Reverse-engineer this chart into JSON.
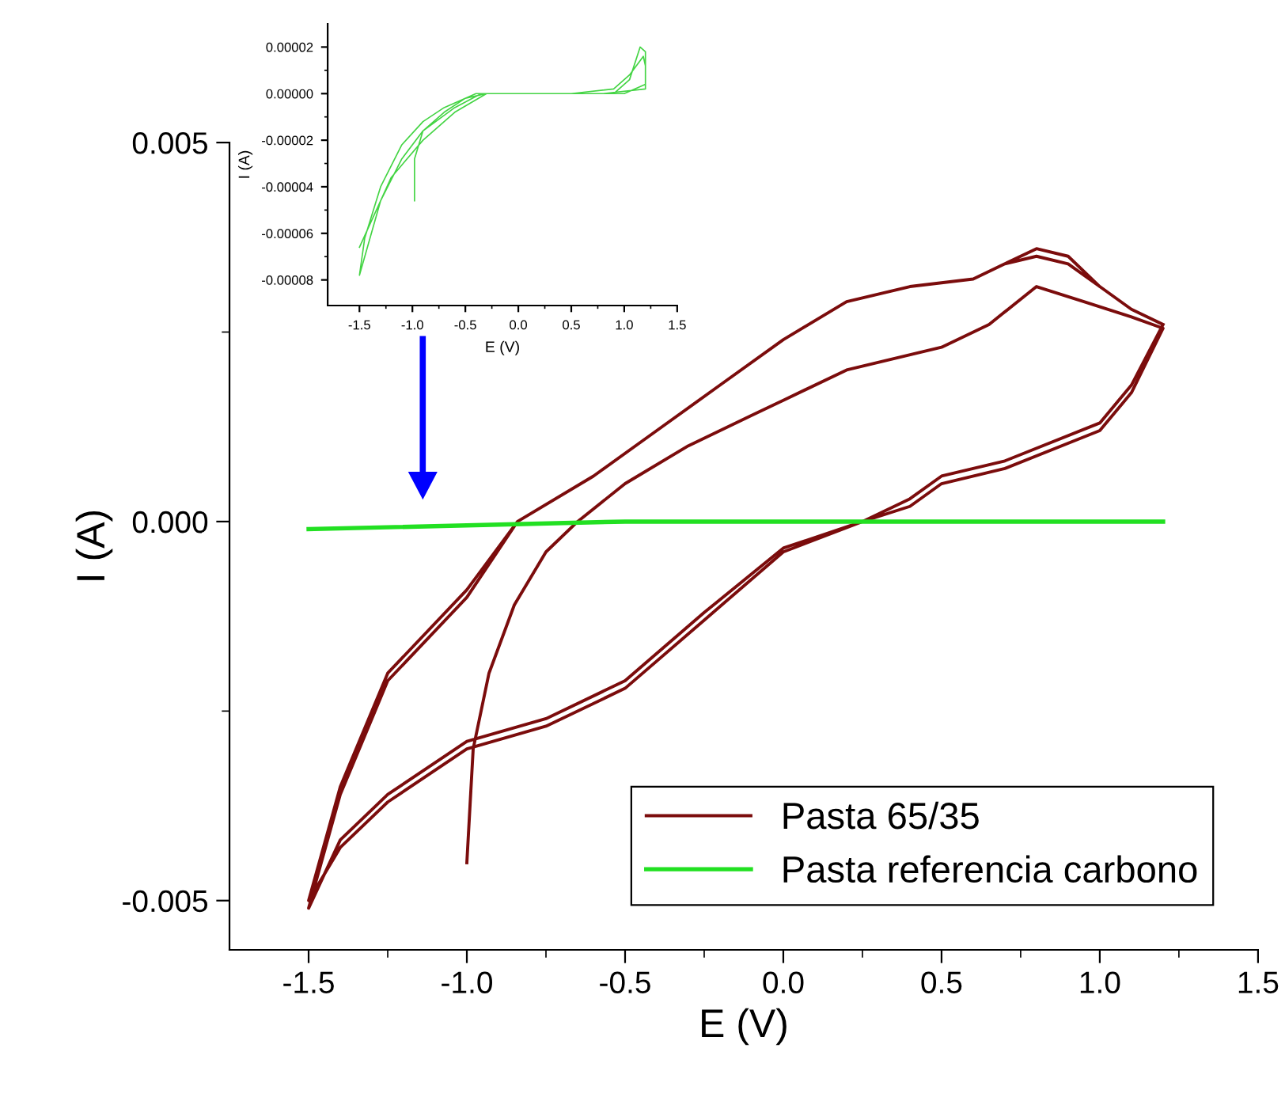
{
  "chart_data": [
    {
      "type": "line",
      "xlabel": "E (V)",
      "ylabel": "I (A)",
      "xlim": [
        -1.75,
        1.5
      ],
      "ylim": [
        -0.00565,
        0.005
      ],
      "xticks": [
        -1.5,
        {
          "value": -1.25,
          "label": null
        },
        {
          "value": -1,
          "label": "-1.0"
        },
        {
          "value": -0.75,
          "label": null
        },
        -0.5,
        {
          "value": -0.25,
          "label": null
        },
        {
          "value": 0,
          "label": "0.0"
        },
        {
          "value": 0.25,
          "label": null
        },
        0.5,
        {
          "value": 0.75,
          "label": null
        },
        {
          "value": 1,
          "label": "1.0"
        },
        {
          "value": 1.25,
          "label": null
        },
        1.5
      ],
      "yticks": [
        {
          "value": -0.005,
          "label": "-0.005"
        },
        {
          "value": -0.0025,
          "label": null
        },
        {
          "value": 0,
          "label": "0.000"
        },
        {
          "value": 0.0025,
          "label": null
        },
        {
          "value": 0.005,
          "label": "0.005"
        }
      ],
      "legend": "bottom right",
      "series": [
        {
          "name": "Pasta 65/35",
          "color": "#7b0c0c",
          "x": [
            -1.0,
            -0.98,
            -0.93,
            -0.85,
            -0.75,
            -0.65,
            -0.5,
            -0.3,
            -0.1,
            0,
            0.2,
            0.5,
            0.65,
            0.8,
            0.95,
            1.1,
            1.2,
            1.1,
            1.0,
            0.7,
            0.5,
            0.4,
            0.25,
            0,
            -0.25,
            -0.5,
            -0.75,
            -1.0,
            -1.25,
            -1.4,
            -1.5,
            -1.4,
            -1.25,
            -1.0,
            -0.84,
            -0.6,
            -0.4,
            -0.2,
            0,
            0.2,
            0.4,
            0.6,
            0.7,
            0.8,
            0.9,
            1.0,
            1.1,
            1.2,
            1.1,
            1.0,
            0.7,
            0.5,
            0.4,
            0.25,
            0,
            -0.25,
            -0.5,
            -0.75,
            -1.0,
            -1.25,
            -1.4,
            -1.5,
            -1.4,
            -1.25,
            -1.0,
            -0.84,
            -0.6,
            -0.4,
            -0.2,
            0,
            0.2,
            0.4,
            0.6,
            0.7,
            0.8,
            0.9,
            1.0,
            1.1,
            1.2
          ],
          "values": [
            -0.0045,
            -0.003,
            -0.002,
            -0.0011,
            -0.0004,
            0,
            0.0005,
            0.001,
            0.0014,
            0.0016,
            0.002,
            0.0023,
            0.0026,
            0.0031,
            0.0029,
            0.0027,
            0.00255,
            0.0017,
            0.0012,
            0.0007,
            0.0005,
            0.0002,
            0,
            -0.00035,
            -0.0012,
            -0.0021,
            -0.0026,
            -0.0029,
            -0.0036,
            -0.0042,
            -0.0051,
            -0.0036,
            -0.0021,
            -0.001,
            0,
            0.0006,
            0.0012,
            0.0018,
            0.0024,
            0.0029,
            0.0031,
            0.0032,
            0.0034,
            0.0036,
            0.0035,
            0.0031,
            0.0028,
            0.0026,
            0.0018,
            0.0013,
            0.0008,
            0.0006,
            0.0003,
            0,
            -0.0004,
            -0.0013,
            -0.0022,
            -0.0027,
            -0.003,
            -0.0037,
            -0.0043,
            -0.005,
            -0.0035,
            -0.002,
            -0.0009,
            0,
            0.0006,
            0.0012,
            0.0018,
            0.0024,
            0.0029,
            0.0031,
            0.0032,
            0.0034,
            0.0035,
            0.0034,
            0.0031,
            0.0028,
            0.0026
          ]
        },
        {
          "name": "Pasta referencia carbono",
          "color": "#22e022",
          "x": [
            -1.5,
            -0.5,
            0.5,
            1.2
          ],
          "values": [
            -0.0001,
            0,
            0,
            0
          ]
        }
      ]
    },
    {
      "type": "line",
      "xlabel": "E (V)",
      "ylabel": "I (A)",
      "xlim": [
        -1.8,
        1.5
      ],
      "ylim": [
        -9.1e-05,
        3e-05
      ],
      "xticks": [
        -1.5,
        {
          "value": -1.25,
          "label": null
        },
        {
          "value": -1,
          "label": "-1.0"
        },
        {
          "value": -0.75,
          "label": null
        },
        -0.5,
        {
          "value": -0.25,
          "label": null
        },
        {
          "value": 0,
          "label": "0.0"
        },
        {
          "value": 0.25,
          "label": null
        },
        0.5,
        {
          "value": 0.75,
          "label": null
        },
        {
          "value": 1,
          "label": "1.0"
        },
        {
          "value": 1.25,
          "label": null
        },
        1.5
      ],
      "yticks": [
        {
          "value": 2e-05,
          "label": "0.00002"
        },
        {
          "value": 1e-05,
          "label": null
        },
        {
          "value": 0,
          "label": "0.00000"
        },
        {
          "value": -1e-05,
          "label": null
        },
        {
          "value": -2e-05,
          "label": "-0.00002"
        },
        {
          "value": -3e-05,
          "label": null
        },
        {
          "value": -4e-05,
          "label": "-0.00004"
        },
        {
          "value": -5e-05,
          "label": null
        },
        {
          "value": -6e-05,
          "label": "-0.00006"
        },
        {
          "value": -7e-05,
          "label": null
        },
        {
          "value": -8e-05,
          "label": "-0.00008"
        }
      ],
      "series": [
        {
          "color": "#44d444",
          "x": [
            -0.98,
            -0.98,
            -0.9,
            -0.7,
            -0.5,
            -0.3,
            -0.1,
            0.2,
            0.6,
            0.9,
            1.05,
            1.15,
            1.2,
            1.2,
            1.0,
            0.5,
            0,
            -0.35,
            -0.6,
            -0.9,
            -1.1,
            -1.3,
            -1.5,
            -1.45,
            -1.3,
            -1.1,
            -0.9,
            -0.7,
            -0.4,
            -0.2,
            0.1,
            0.5,
            0.9,
            1.05,
            1.18,
            1.2,
            1.2,
            0.8,
            0.3,
            -0.3,
            -0.6,
            -0.9,
            -1.2,
            -1.5
          ],
          "values": [
            -4.6e-05,
            -2.8e-05,
            -1.6e-05,
            -8e-06,
            -2e-06,
            0,
            0,
            0,
            0,
            0,
            6e-06,
            2e-05,
            1.8e-05,
            4e-06,
            0,
            0,
            0,
            0,
            -6e-06,
            -1.6e-05,
            -2.8e-05,
            -4.6e-05,
            -7.8e-05,
            -6.2e-05,
            -4e-05,
            -2.2e-05,
            -1.2e-05,
            -6e-06,
            0,
            0,
            0,
            0,
            2e-06,
            8e-06,
            1.6e-05,
            1.2e-05,
            2e-06,
            0,
            0,
            0,
            -8e-06,
            -2e-05,
            -3.6e-05,
            -6.6e-05
          ]
        }
      ]
    }
  ]
}
